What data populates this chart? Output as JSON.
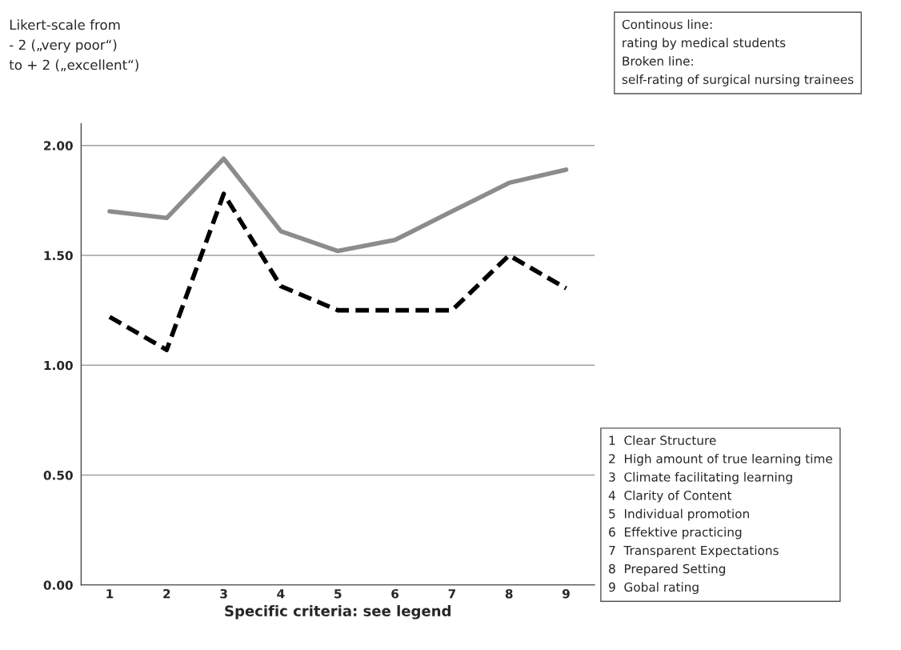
{
  "chart_data": {
    "type": "line",
    "xlabel": "Specific criteria: see legend",
    "categories": [
      "1",
      "2",
      "3",
      "4",
      "5",
      "6",
      "7",
      "8",
      "9"
    ],
    "series": [
      {
        "color": "#8c8c8c",
        "line_style": "solid",
        "values": [
          1.7,
          1.67,
          1.94,
          1.61,
          1.52,
          1.57,
          1.7,
          1.83,
          1.89
        ]
      },
      {
        "color": "#000000",
        "line_style": "dashed",
        "values": [
          1.22,
          1.07,
          1.78,
          1.36,
          1.25,
          1.25,
          1.25,
          1.5,
          1.35
        ]
      }
    ],
    "ylim": [
      0,
      2.1
    ],
    "yticks": [
      {
        "value": 0,
        "label": "0.00"
      },
      {
        "value": 0.5,
        "label": "0.50"
      },
      {
        "value": 1,
        "label": "1.00"
      },
      {
        "value": 1.5,
        "label": "1.50"
      },
      {
        "value": 2,
        "label": "2.00"
      }
    ],
    "grid": "y",
    "marker": "none",
    "annotations": [
      "Likert-scale from\n- 2 („very poor“)\nto + 2 („excellent“)",
      "Continous line:\nrating by medical students\nBroken line:\nself-rating of surgical nursing trainees",
      "1  Clear Structure\n2  High amount of true learning time\n3  Climate facilitating learning\n4  Clarity of Content\n5  Individual promotion\n6  Effektive practicing\n7  Transparent Expectations\n8  Prepared Setting\n9  Gobal rating"
    ]
  }
}
